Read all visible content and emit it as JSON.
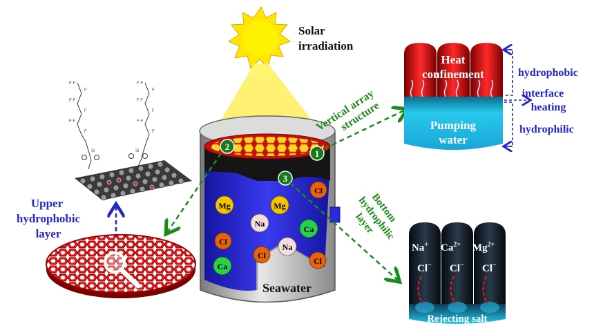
{
  "labels": {
    "solar_line1": "Solar",
    "solar_line2": "irradiation",
    "vertical_line1": "Vertical array",
    "vertical_line2": "structure",
    "bottom_line1": "Bottom",
    "bottom_line2": "hydrophilic",
    "bottom_line3": "layer",
    "upper_line1": "Upper",
    "upper_line2": "hydrophobic",
    "upper_line3": "layer",
    "seawater": "Seawater"
  },
  "heat_panel": {
    "heat_line1": "Heat",
    "heat_line2": "confinement",
    "pumping_line1": "Pumping",
    "pumping_line2": "water",
    "hydrophobic": "hydrophobic",
    "interface_line1": "interface",
    "interface_line2": "heating",
    "hydrophilic": "hydrophilic"
  },
  "salt_panel": {
    "na": "Na",
    "na_sup": "+",
    "ca": "Ca",
    "ca_sup": "2+",
    "mg": "Mg",
    "mg_sup": "2+",
    "cl": "Cl",
    "cl_sup": "−",
    "rejecting": "Rejecting salt"
  },
  "markers": [
    "1",
    "2",
    "3"
  ],
  "ions": [
    {
      "label": "Mg",
      "color": "#f5c400"
    },
    {
      "label": "Mg",
      "color": "#f5c400"
    },
    {
      "label": "Cl",
      "color": "#e8620c"
    },
    {
      "label": "Cl",
      "color": "#e8620c"
    },
    {
      "label": "Na",
      "color": "#f3dede"
    },
    {
      "label": "Na",
      "color": "#f3dede"
    },
    {
      "label": "Cl",
      "color": "#e8620c"
    },
    {
      "label": "Cl",
      "color": "#e8620c"
    },
    {
      "label": "Cl",
      "color": "#e8620c"
    },
    {
      "label": "Ca",
      "color": "#2bd04a"
    },
    {
      "label": "Ca",
      "color": "#2bd04a"
    }
  ],
  "colors": {
    "arrow_green": "#1a8a1a",
    "label_blue": "#2525c8",
    "ion_blue": "#2a2ad8",
    "red_mesh": "#d81818",
    "sun": "#ffe600"
  },
  "icons": [
    "sun-icon",
    "magnifier-icon",
    "graphene-sheet-icon",
    "fluorocarbon-chain-icon"
  ]
}
